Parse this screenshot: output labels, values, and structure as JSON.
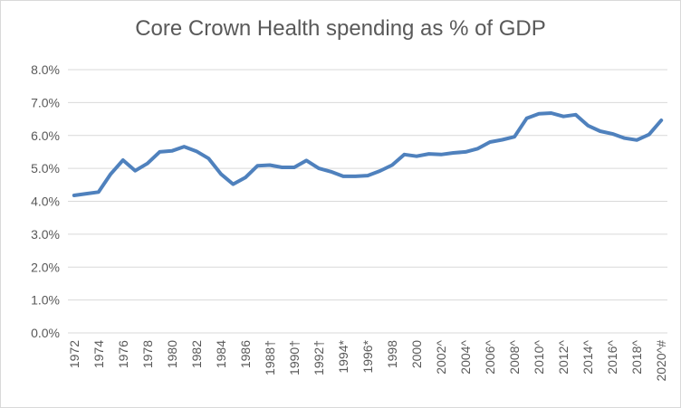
{
  "chart_data": {
    "type": "line",
    "title": "Core Crown Health spending as % of GDP",
    "xlabel": "",
    "ylabel": "",
    "ylim": [
      0,
      8
    ],
    "y_ticks": [
      "0.0%",
      "1.0%",
      "2.0%",
      "3.0%",
      "4.0%",
      "5.0%",
      "6.0%",
      "7.0%",
      "8.0%"
    ],
    "grid": true,
    "legend": "none",
    "line_color": "#4f81bd",
    "x": [
      "1972",
      "1973",
      "1974",
      "1975",
      "1976",
      "1977",
      "1978",
      "1979",
      "1980",
      "1981",
      "1982",
      "1983",
      "1984",
      "1985",
      "1986",
      "1987",
      "1988†",
      "1989",
      "1990†",
      "1991",
      "1992†",
      "1993",
      "1994*",
      "1995",
      "1996*",
      "1997",
      "1998",
      "1999",
      "2000",
      "2001",
      "2002^",
      "2003",
      "2004^",
      "2005",
      "2006^",
      "2007",
      "2008^",
      "2009",
      "2010^",
      "2011",
      "2012^",
      "2013",
      "2014^",
      "2015",
      "2016^",
      "2017",
      "2018^",
      "2019",
      "2020^#"
    ],
    "x_tick_labels": [
      "1972",
      "1974",
      "1976",
      "1978",
      "1980",
      "1982",
      "1984",
      "1986",
      "1988†",
      "1990†",
      "1992†",
      "1994*",
      "1996*",
      "1998",
      "2000",
      "2002^",
      "2004^",
      "2006^",
      "2008^",
      "2010^",
      "2012^",
      "2014^",
      "2016^",
      "2018^",
      "2020^#"
    ],
    "series": [
      {
        "name": "Core Crown Health spending as % of GDP",
        "values": [
          4.18,
          4.23,
          4.28,
          4.83,
          5.25,
          4.93,
          5.15,
          5.5,
          5.53,
          5.66,
          5.52,
          5.3,
          4.83,
          4.52,
          4.72,
          5.08,
          5.1,
          5.03,
          5.03,
          5.24,
          5.0,
          4.9,
          4.76,
          4.76,
          4.78,
          4.92,
          5.1,
          5.42,
          5.37,
          5.44,
          5.42,
          5.47,
          5.5,
          5.6,
          5.8,
          5.87,
          5.96,
          6.52,
          6.66,
          6.68,
          6.58,
          6.63,
          6.3,
          6.13,
          6.05,
          5.92,
          5.86,
          6.03,
          6.46
        ]
      }
    ]
  }
}
